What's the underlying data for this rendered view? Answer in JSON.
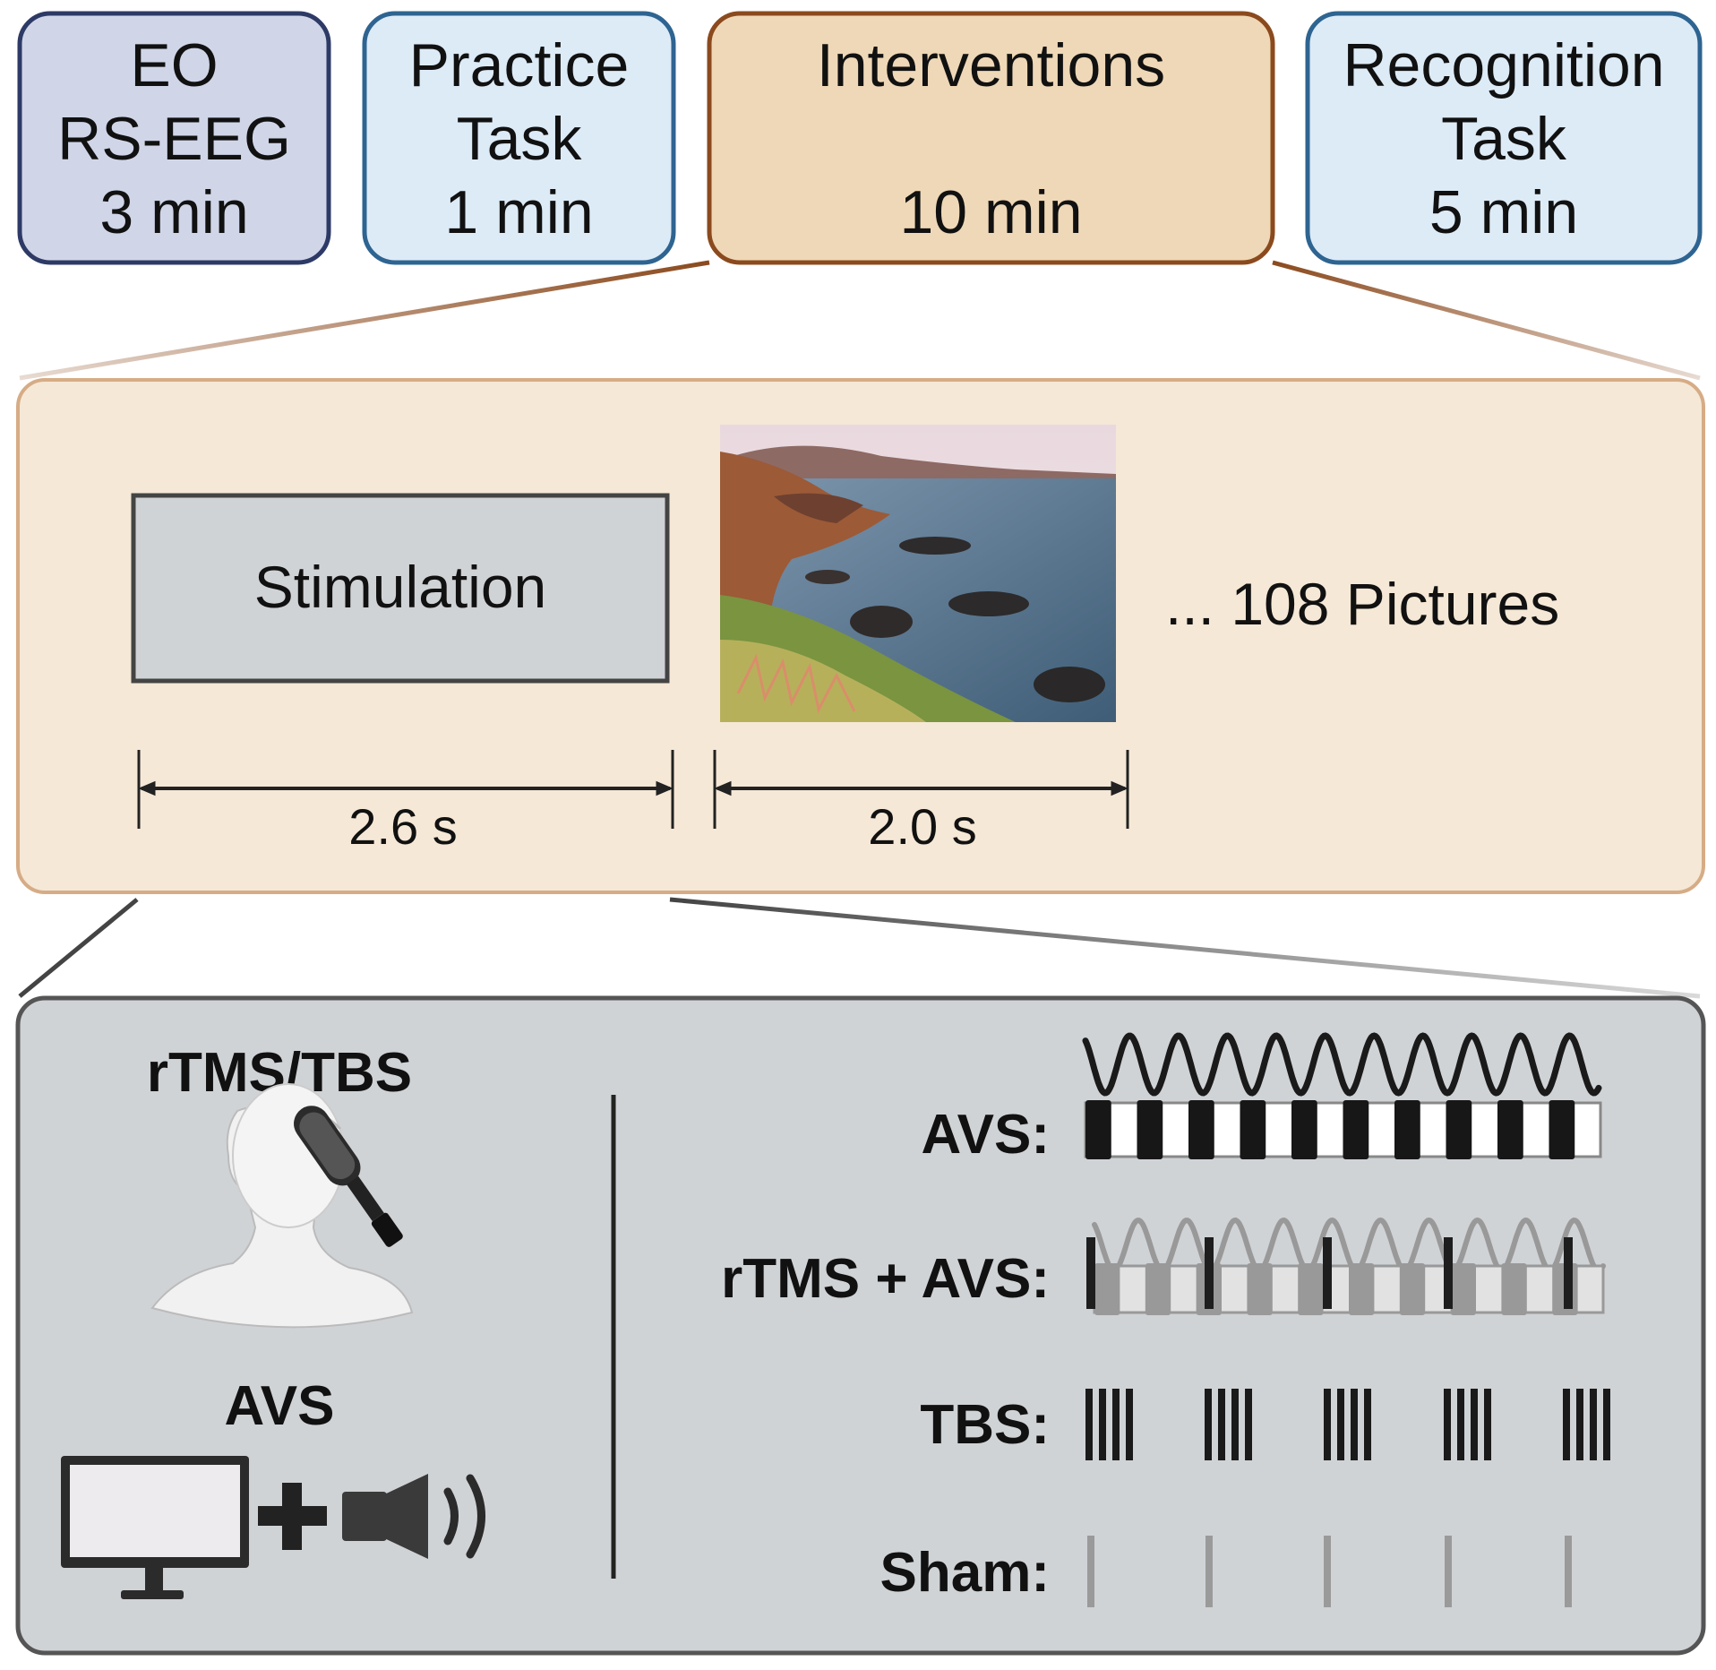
{
  "phases": [
    {
      "lines": [
        "EO",
        "RS-EEG",
        "3 min"
      ],
      "fill": "#D0D6E8",
      "stroke": "#2E3A66"
    },
    {
      "lines": [
        "Practice",
        "Task",
        "1 min"
      ],
      "fill": "#DDEBF7",
      "stroke": "#2E6491"
    },
    {
      "lines": [
        "Interventions",
        "",
        "10 min"
      ],
      "fill": "#EFD8B7",
      "stroke": "#8B4A1E"
    },
    {
      "lines": [
        "Recognition",
        "Task",
        "5 min"
      ],
      "fill": "#DDEBF7",
      "stroke": "#2E6491"
    }
  ],
  "trial": {
    "stimulation_label": "Stimulation",
    "pictures_label": "... 108 Pictures",
    "stimulation_duration": "2.6 s",
    "picture_duration": "2.0 s",
    "panel_fill": "#F5E8D6",
    "panel_stroke": "#D6AC86"
  },
  "conditions": {
    "rtms_label": "rTMS/TBS",
    "avs_label": "AVS",
    "rows": [
      {
        "label": "AVS:"
      },
      {
        "label": "rTMS + AVS:"
      },
      {
        "label": "TBS:"
      },
      {
        "label": "Sham:"
      }
    ],
    "panel_fill": "#D0D3D6",
    "panel_stroke": "#555555"
  }
}
